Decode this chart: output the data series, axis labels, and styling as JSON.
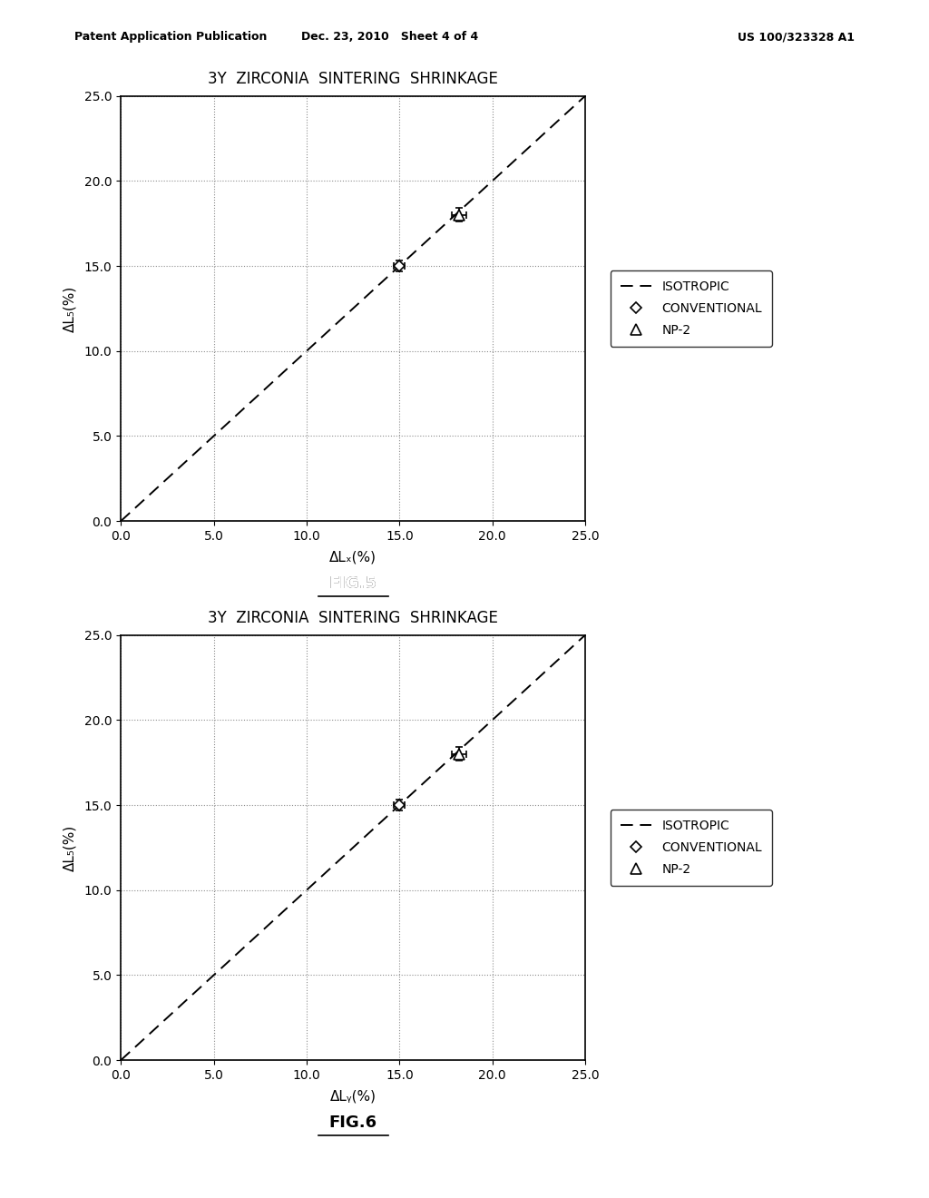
{
  "title": "3Y  ZIRCONIA  SINTERING  SHRINKAGE",
  "fig5_label": "FIG.5",
  "fig6_label": "FIG.6",
  "xlabel_fig5": "ΔLₓ(%)",
  "xlabel_fig6": "ΔLᵧ(%)",
  "ylabel": "ΔL₅(%)",
  "xlim": [
    0.0,
    25.0
  ],
  "ylim": [
    0.0,
    25.0
  ],
  "xticks": [
    0.0,
    5.0,
    10.0,
    15.0,
    20.0,
    25.0
  ],
  "yticks": [
    0.0,
    5.0,
    10.0,
    15.0,
    20.0,
    25.0
  ],
  "isotropic_line_x": [
    0.0,
    25.0
  ],
  "isotropic_line_y": [
    0.0,
    25.0
  ],
  "conventional_x": 15.0,
  "conventional_y": 15.0,
  "np2_x": 18.2,
  "np2_y": 18.0,
  "conventional_xerr": 0.3,
  "conventional_yerr": 0.3,
  "np2_xerr": 0.4,
  "np2_yerr": 0.4,
  "background_color": "#ffffff",
  "header_left": "Patent Application Publication",
  "header_mid": "Dec. 23, 2010   Sheet 4 of 4",
  "header_right": "US 100/323328 A1"
}
